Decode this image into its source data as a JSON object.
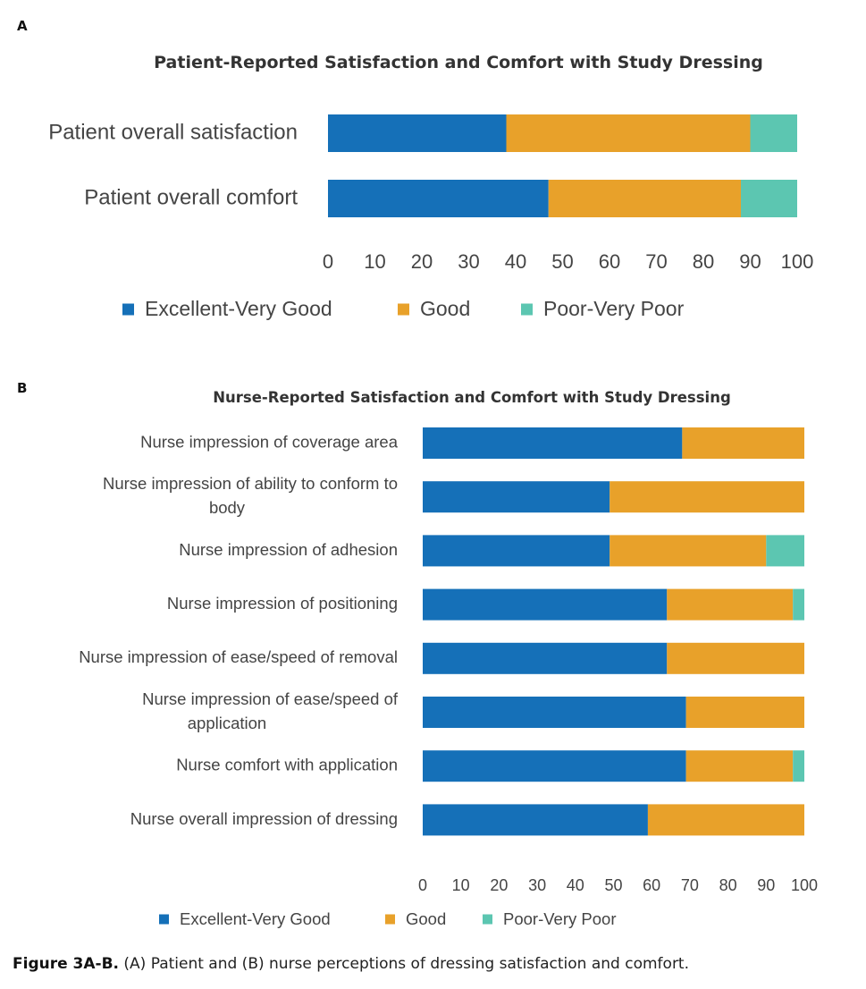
{
  "panel_labels": [
    "A",
    "B"
  ],
  "colors": {
    "excellent": "#1570B8",
    "good": "#E8A12A",
    "poor": "#5CC6B1"
  },
  "chart_data": [
    {
      "type": "bar",
      "orientation": "horizontal",
      "stacked": true,
      "title": "Patient-Reported Satisfaction and Comfort with Study Dressing",
      "categories": [
        "Patient overall satisfaction",
        "Patient overall comfort"
      ],
      "series": [
        {
          "name": "Excellent-Very Good",
          "values": [
            38,
            47
          ]
        },
        {
          "name": "Good",
          "values": [
            52,
            41
          ]
        },
        {
          "name": "Poor-Very Poor",
          "values": [
            10,
            12
          ]
        }
      ],
      "xlim": [
        0,
        100
      ],
      "xticks": [
        "0",
        "10",
        "20",
        "30",
        "40",
        "50",
        "60",
        "70",
        "80",
        "90",
        "100"
      ],
      "legend": "bottom",
      "grid": false
    },
    {
      "type": "bar",
      "orientation": "horizontal",
      "stacked": true,
      "title": "Nurse-Reported Satisfaction and Comfort with Study Dressing",
      "categories": [
        [
          "Nurse impression of coverage area"
        ],
        [
          "Nurse impression of ability to conform to",
          "body"
        ],
        [
          "Nurse impression of adhesion"
        ],
        [
          "Nurse impression of positioning"
        ],
        [
          "Nurse impression of ease/speed of removal"
        ],
        [
          "Nurse impression of ease/speed of",
          "application"
        ],
        [
          "Nurse comfort with application"
        ],
        [
          "Nurse overall impression of dressing"
        ]
      ],
      "series": [
        {
          "name": "Excellent-Very Good",
          "values": [
            68,
            49,
            49,
            64,
            64,
            69,
            69,
            59
          ]
        },
        {
          "name": "Good",
          "values": [
            32,
            51,
            41,
            33,
            36,
            31,
            28,
            41
          ]
        },
        {
          "name": "Poor-Very Poor",
          "values": [
            0,
            0,
            10,
            3,
            0,
            0,
            3,
            0
          ]
        }
      ],
      "xlim": [
        0,
        100
      ],
      "xticks": [
        "0",
        "10",
        "20",
        "30",
        "40",
        "50",
        "60",
        "70",
        "80",
        "90",
        "100"
      ],
      "legend": "bottom",
      "grid": false
    }
  ],
  "caption": {
    "label": "Figure 3A-B.",
    "text": " (A) Patient and (B) nurse perceptions of dressing satisfaction and comfort."
  }
}
